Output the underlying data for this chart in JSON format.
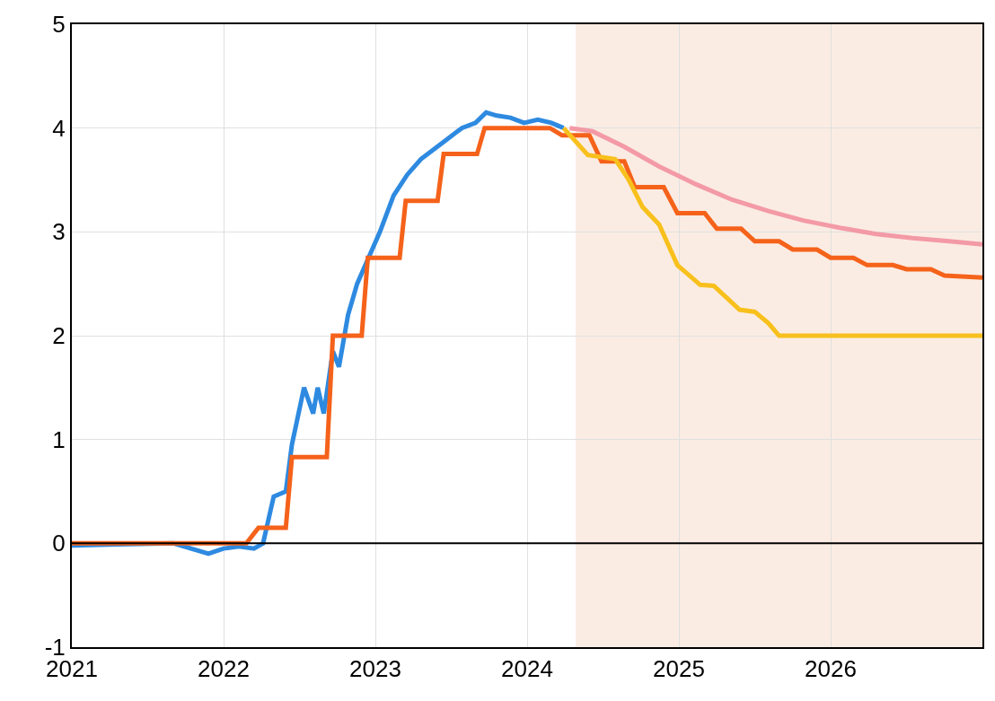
{
  "chart_data": {
    "type": "line",
    "xlim": [
      2021,
      2027
    ],
    "xticks": [
      2021,
      2022,
      2023,
      2024,
      2025,
      2026
    ],
    "ylim": [
      -1,
      5
    ],
    "yticks": [
      -1,
      0,
      1,
      2,
      3,
      4,
      5
    ],
    "grid": true,
    "legend": false,
    "marker": "none",
    "line_style": "solid",
    "ref_lines": [
      {
        "axis": "y",
        "value": 0,
        "color": "#000000"
      }
    ],
    "bands": [
      {
        "axis": "x",
        "from": 2024.32,
        "to": 2027,
        "color": "#fbece3"
      }
    ],
    "series": [
      {
        "color": "#2e8ae0",
        "x": [
          2021,
          2021.3,
          2021.67,
          2021.9,
          2022.0,
          2022.1,
          2022.2,
          2022.26,
          2022.33,
          2022.41,
          2022.45,
          2022.53,
          2022.59,
          2022.62,
          2022.66,
          2022.72,
          2022.76,
          2022.82,
          2022.88,
          2022.94,
          2023.03,
          2023.12,
          2023.21,
          2023.3,
          2023.39,
          2023.48,
          2023.57,
          2023.66,
          2023.73,
          2023.8,
          2023.89,
          2023.98,
          2024.07,
          2024.16,
          2024.24
        ],
        "values": [
          -0.02,
          -0.01,
          0,
          -0.1,
          -0.05,
          -0.03,
          -0.05,
          0,
          0.45,
          0.5,
          0.95,
          1.5,
          1.25,
          1.5,
          1.25,
          1.85,
          1.7,
          2.2,
          2.5,
          2.7,
          3.0,
          3.35,
          3.55,
          3.7,
          3.8,
          3.9,
          4.0,
          4.05,
          4.15,
          4.12,
          4.1,
          4.05,
          4.08,
          4.05,
          4.0
        ]
      },
      {
        "color": "#f5621a",
        "x": [
          2021,
          2022.15,
          2022.23,
          2022.41,
          2022.45,
          2022.68,
          2022.72,
          2022.91,
          2022.95,
          2023.16,
          2023.2,
          2023.41,
          2023.45,
          2023.67,
          2023.72,
          2024.15,
          2024.23,
          2024.41,
          2024.49,
          2024.64,
          2024.71,
          2024.9,
          2024.99,
          2025.17,
          2025.25,
          2025.41,
          2025.5,
          2025.66,
          2025.75,
          2025.91,
          2026.0,
          2026.15,
          2026.24,
          2026.41,
          2026.5,
          2026.66,
          2026.75,
          2027
        ],
        "values": [
          0,
          0,
          0.15,
          0.15,
          0.83,
          0.83,
          2.0,
          2.0,
          2.75,
          2.75,
          3.3,
          3.3,
          3.75,
          3.75,
          4.0,
          4.0,
          3.93,
          3.93,
          3.68,
          3.68,
          3.43,
          3.43,
          3.18,
          3.18,
          3.03,
          3.03,
          2.91,
          2.91,
          2.83,
          2.83,
          2.75,
          2.75,
          2.68,
          2.68,
          2.64,
          2.64,
          2.58,
          2.56
        ]
      },
      {
        "color": "#f8c01c",
        "x": [
          2024.24,
          2024.4,
          2024.58,
          2024.67,
          2024.76,
          2024.87,
          2024.99,
          2025.14,
          2025.23,
          2025.4,
          2025.5,
          2025.59,
          2025.66,
          2027
        ],
        "values": [
          4.0,
          3.74,
          3.7,
          3.5,
          3.24,
          3.07,
          2.68,
          2.49,
          2.48,
          2.25,
          2.23,
          2.12,
          2.0,
          2.0
        ]
      },
      {
        "color": "#f39aa6",
        "x": [
          2024.28,
          2024.43,
          2024.64,
          2024.87,
          2025.11,
          2025.35,
          2025.59,
          2025.82,
          2026.06,
          2026.3,
          2026.54,
          2026.78,
          2027
        ],
        "values": [
          4.0,
          3.97,
          3.82,
          3.63,
          3.46,
          3.31,
          3.2,
          3.11,
          3.04,
          2.98,
          2.94,
          2.91,
          2.88
        ]
      }
    ]
  }
}
